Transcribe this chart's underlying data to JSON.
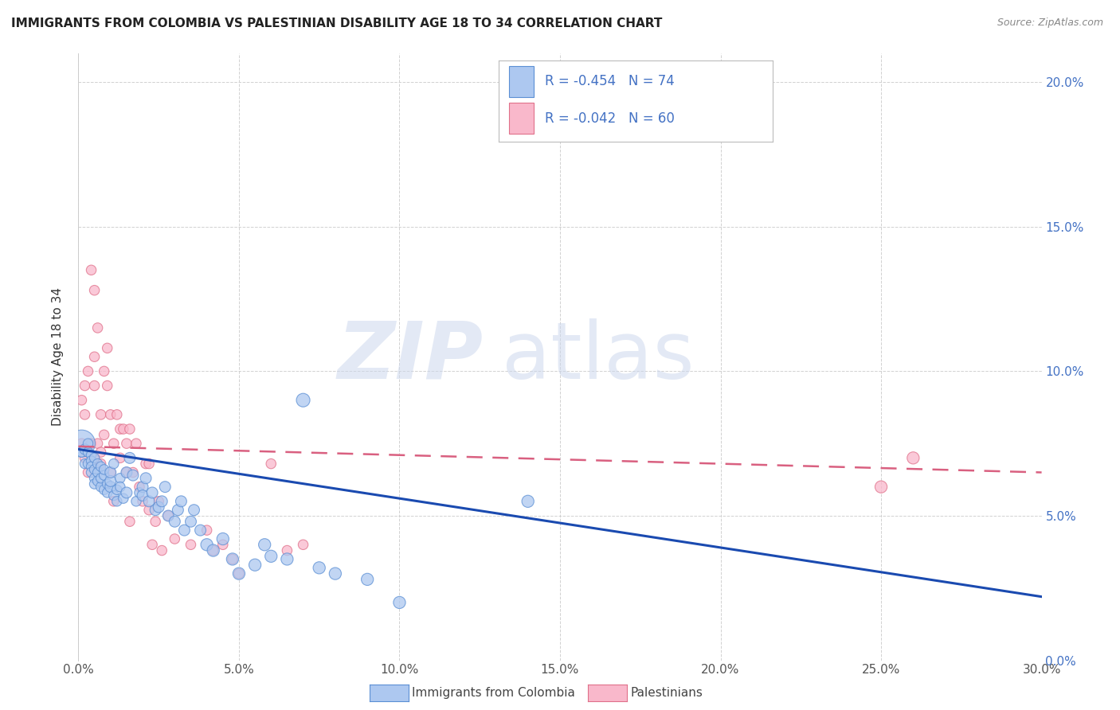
{
  "title": "IMMIGRANTS FROM COLOMBIA VS PALESTINIAN DISABILITY AGE 18 TO 34 CORRELATION CHART",
  "source": "Source: ZipAtlas.com",
  "xmin": 0.0,
  "xmax": 0.3,
  "ymin": 0.0,
  "ymax": 0.21,
  "colombia_color": "#adc8f0",
  "colombia_edge_color": "#5b8fd4",
  "palestinians_color": "#f9b8cb",
  "palestinians_edge_color": "#e0708a",
  "trend_colombia_color": "#1a4ab0",
  "trend_palestinians_color": "#d96080",
  "legend_r_colombia": "R = -0.454",
  "legend_n_colombia": "N = 74",
  "legend_r_palestinians": "R = -0.042",
  "legend_n_palestinians": "N = 60",
  "legend_text_color": "#4472c4",
  "label_colombia": "Immigrants from Colombia",
  "label_palestinians": "Palestinians",
  "ylabel": "Disability Age 18 to 34",
  "colombia_x": [
    0.001,
    0.001,
    0.002,
    0.002,
    0.003,
    0.003,
    0.003,
    0.004,
    0.004,
    0.004,
    0.004,
    0.005,
    0.005,
    0.005,
    0.005,
    0.006,
    0.006,
    0.006,
    0.007,
    0.007,
    0.007,
    0.008,
    0.008,
    0.008,
    0.009,
    0.009,
    0.01,
    0.01,
    0.01,
    0.011,
    0.011,
    0.012,
    0.012,
    0.013,
    0.013,
    0.014,
    0.015,
    0.015,
    0.016,
    0.017,
    0.018,
    0.019,
    0.02,
    0.02,
    0.021,
    0.022,
    0.023,
    0.024,
    0.025,
    0.026,
    0.027,
    0.028,
    0.03,
    0.031,
    0.032,
    0.033,
    0.035,
    0.036,
    0.038,
    0.04,
    0.042,
    0.045,
    0.048,
    0.05,
    0.055,
    0.058,
    0.06,
    0.065,
    0.07,
    0.075,
    0.08,
    0.09,
    0.1,
    0.14
  ],
  "colombia_y": [
    0.075,
    0.072,
    0.073,
    0.068,
    0.072,
    0.075,
    0.068,
    0.071,
    0.069,
    0.067,
    0.065,
    0.066,
    0.063,
    0.061,
    0.07,
    0.068,
    0.065,
    0.062,
    0.06,
    0.067,
    0.063,
    0.059,
    0.064,
    0.066,
    0.061,
    0.058,
    0.06,
    0.062,
    0.065,
    0.057,
    0.068,
    0.055,
    0.059,
    0.063,
    0.06,
    0.056,
    0.065,
    0.058,
    0.07,
    0.064,
    0.055,
    0.058,
    0.06,
    0.057,
    0.063,
    0.055,
    0.058,
    0.052,
    0.053,
    0.055,
    0.06,
    0.05,
    0.048,
    0.052,
    0.055,
    0.045,
    0.048,
    0.052,
    0.045,
    0.04,
    0.038,
    0.042,
    0.035,
    0.03,
    0.033,
    0.04,
    0.036,
    0.035,
    0.09,
    0.032,
    0.03,
    0.028,
    0.02,
    0.055
  ],
  "colombia_sizes": [
    600,
    80,
    90,
    80,
    80,
    80,
    80,
    80,
    80,
    80,
    80,
    80,
    80,
    80,
    80,
    80,
    80,
    80,
    80,
    80,
    80,
    80,
    80,
    80,
    80,
    80,
    100,
    100,
    100,
    80,
    80,
    80,
    80,
    80,
    80,
    80,
    100,
    100,
    100,
    100,
    80,
    80,
    100,
    100,
    100,
    100,
    100,
    100,
    100,
    100,
    100,
    100,
    100,
    100,
    100,
    100,
    100,
    100,
    100,
    120,
    120,
    120,
    120,
    120,
    120,
    120,
    120,
    120,
    150,
    120,
    120,
    120,
    120,
    120
  ],
  "palestinians_x": [
    0.001,
    0.001,
    0.002,
    0.002,
    0.002,
    0.003,
    0.003,
    0.003,
    0.004,
    0.004,
    0.004,
    0.005,
    0.005,
    0.005,
    0.005,
    0.006,
    0.006,
    0.007,
    0.007,
    0.007,
    0.008,
    0.008,
    0.009,
    0.009,
    0.01,
    0.01,
    0.011,
    0.011,
    0.012,
    0.013,
    0.013,
    0.014,
    0.015,
    0.015,
    0.016,
    0.016,
    0.017,
    0.018,
    0.019,
    0.02,
    0.021,
    0.022,
    0.022,
    0.023,
    0.024,
    0.025,
    0.026,
    0.028,
    0.03,
    0.035,
    0.04,
    0.042,
    0.045,
    0.048,
    0.05,
    0.06,
    0.065,
    0.07,
    0.25,
    0.26
  ],
  "palestinians_y": [
    0.075,
    0.09,
    0.085,
    0.095,
    0.07,
    0.072,
    0.065,
    0.1,
    0.068,
    0.135,
    0.075,
    0.128,
    0.095,
    0.105,
    0.07,
    0.115,
    0.075,
    0.085,
    0.072,
    0.068,
    0.1,
    0.078,
    0.108,
    0.095,
    0.085,
    0.065,
    0.075,
    0.055,
    0.085,
    0.08,
    0.07,
    0.08,
    0.075,
    0.065,
    0.08,
    0.048,
    0.065,
    0.075,
    0.06,
    0.055,
    0.068,
    0.052,
    0.068,
    0.04,
    0.048,
    0.055,
    0.038,
    0.05,
    0.042,
    0.04,
    0.045,
    0.038,
    0.04,
    0.035,
    0.03,
    0.068,
    0.038,
    0.04,
    0.06,
    0.07
  ],
  "palestinians_sizes": [
    80,
    80,
    80,
    80,
    80,
    80,
    80,
    80,
    80,
    80,
    80,
    80,
    80,
    80,
    80,
    80,
    80,
    80,
    80,
    80,
    80,
    80,
    80,
    80,
    80,
    80,
    80,
    80,
    80,
    80,
    80,
    80,
    80,
    80,
    80,
    80,
    80,
    80,
    80,
    80,
    80,
    80,
    80,
    80,
    80,
    80,
    80,
    80,
    80,
    80,
    80,
    80,
    80,
    80,
    80,
    80,
    80,
    80,
    120,
    120
  ],
  "colombia_trend": [
    0.073,
    0.022
  ],
  "palestinians_trend": [
    0.074,
    0.065
  ],
  "yticks": [
    0.0,
    0.05,
    0.1,
    0.15,
    0.2
  ],
  "yticklabels_right": [
    "0.0%",
    "5.0%",
    "10.0%",
    "15.0%",
    "20.0%"
  ],
  "xticks": [
    0.0,
    0.05,
    0.1,
    0.15,
    0.2,
    0.25,
    0.3
  ],
  "xticklabels": [
    "0.0%",
    "5.0%",
    "10.0%",
    "15.0%",
    "20.0%",
    "25.0%",
    "30.0%"
  ],
  "grid_color": "#cccccc",
  "tick_color": "#4472c4",
  "right_yaxis_color": "#4472c4"
}
